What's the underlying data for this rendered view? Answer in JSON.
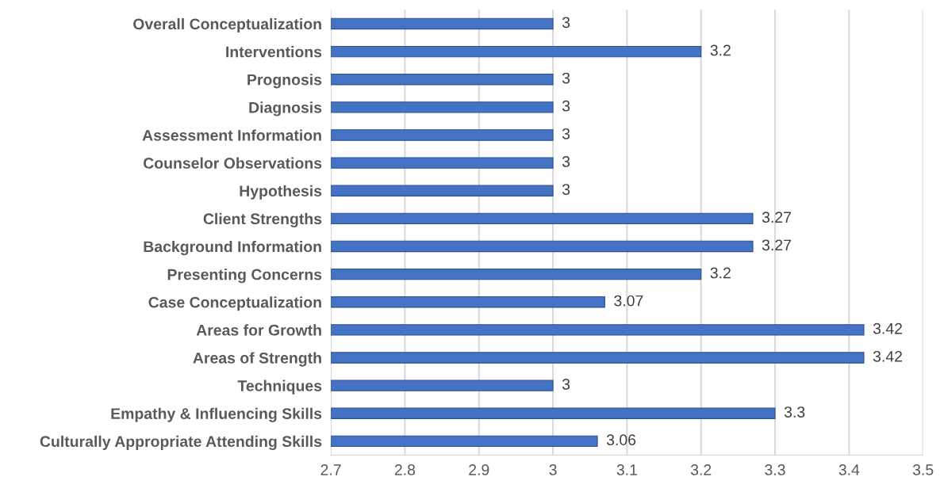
{
  "chart_data": {
    "type": "bar",
    "orientation": "horizontal",
    "categories": [
      "Overall Conceptualization",
      "Interventions",
      "Prognosis",
      "Diagnosis",
      "Assessment Information",
      "Counselor Observations",
      "Hypothesis",
      "Client Strengths",
      "Background Information",
      "Presenting Concerns",
      "Case Conceptualization",
      "Areas for Growth",
      "Areas of Strength",
      "Techniques",
      "Empathy & Influencing Skills",
      "Culturally Appropriate Attending Skills"
    ],
    "values": [
      3,
      3.2,
      3,
      3,
      3,
      3,
      3,
      3.27,
      3.27,
      3.2,
      3.07,
      3.42,
      3.42,
      3,
      3.3,
      3.06
    ],
    "color": "#4472c4",
    "xlim": [
      2.7,
      3.5
    ],
    "xticks": [
      2.7,
      2.8,
      2.9,
      3,
      3.1,
      3.2,
      3.3,
      3.4,
      3.5
    ],
    "grid": "x",
    "data_labels": true,
    "legend": false
  }
}
